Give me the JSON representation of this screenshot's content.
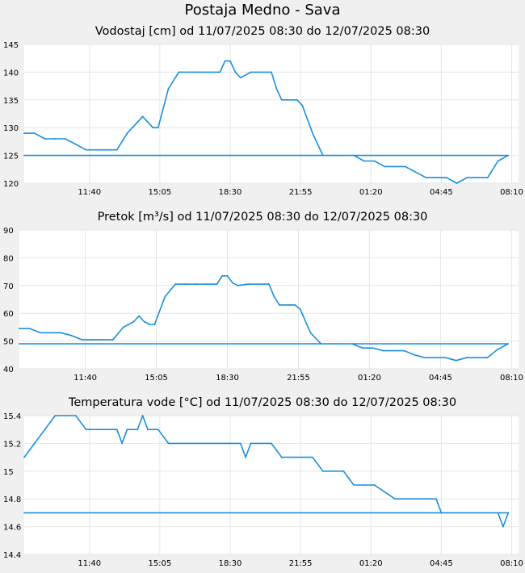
{
  "page_title": "Postaja Medno - Sava",
  "chart_data": [
    {
      "type": "line",
      "title": "Vodostaj [cm] od 11/07/2025 08:30 do 12/07/2025 08:30",
      "xlabel": "",
      "ylabel": "",
      "ylim": [
        120,
        145
      ],
      "yticks": [
        "120",
        "125",
        "130",
        "135",
        "140",
        "145"
      ],
      "xticks": [
        "11:40",
        "15:05",
        "18:30",
        "21:55",
        "01:20",
        "04:45",
        "08:10"
      ],
      "grid": true,
      "color": "#1a8fdc",
      "series": [
        {
          "x": [
            "08:30",
            "09:00",
            "09:30",
            "10:00",
            "10:30",
            "11:00",
            "11:30",
            "12:00",
            "12:30",
            "13:00",
            "13:30",
            "13:45",
            "14:00",
            "14:15",
            "14:30",
            "14:45",
            "15:00",
            "15:30",
            "16:00",
            "16:30",
            "17:00",
            "17:30",
            "18:00",
            "18:15",
            "18:30",
            "18:45",
            "19:00",
            "19:30",
            "20:00",
            "20:30",
            "20:45",
            "21:00",
            "21:30",
            "21:45",
            "22:00",
            "22:30",
            "23:00",
            "23:30",
            "00:00",
            "00:30",
            "01:00",
            "01:30",
            "02:00",
            "02:30",
            "03:00",
            "03:30",
            "04:00",
            "04:30",
            "04:45",
            "05:00",
            "05:30",
            "06:00",
            "06:15",
            "06:30",
            "07:00",
            "07:30",
            "08:00",
            "08:30"
          ],
          "y": [
            129,
            129,
            128,
            128,
            128,
            127,
            126,
            126,
            126,
            126,
            129,
            130,
            131,
            132,
            131,
            130,
            130,
            137,
            140,
            140,
            140,
            140,
            140,
            142,
            142,
            140,
            139,
            140,
            140,
            140,
            137,
            135,
            135,
            135,
            134,
            129,
            125,
            125,
            125,
            125,
            124,
            124,
            123,
            123,
            123,
            122,
            121,
            121,
            121,
            121,
            120,
            121,
            121,
            121,
            121,
            124,
            125,
            125
          ]
        }
      ]
    },
    {
      "type": "line",
      "title": "Pretok [m³/s] od 11/07/2025 08:30 do 12/07/2025 08:30",
      "xlabel": "",
      "ylabel": "",
      "ylim": [
        40,
        90
      ],
      "yticks": [
        "40",
        "50",
        "60",
        "70",
        "80",
        "90"
      ],
      "xticks": [
        "11:40",
        "15:05",
        "18:30",
        "21:55",
        "01:20",
        "04:45",
        "08:10"
      ],
      "grid": true,
      "color": "#1a8fdc",
      "series": [
        {
          "x": [
            "08:30",
            "09:00",
            "09:30",
            "10:00",
            "10:30",
            "11:00",
            "11:30",
            "12:00",
            "12:30",
            "13:00",
            "13:30",
            "13:45",
            "14:00",
            "14:15",
            "14:30",
            "14:45",
            "15:00",
            "15:30",
            "16:00",
            "16:30",
            "17:00",
            "17:30",
            "18:00",
            "18:15",
            "18:30",
            "18:45",
            "19:00",
            "19:30",
            "20:00",
            "20:30",
            "20:45",
            "21:00",
            "21:30",
            "21:45",
            "22:00",
            "22:30",
            "23:00",
            "23:30",
            "00:00",
            "00:30",
            "01:00",
            "01:30",
            "02:00",
            "02:30",
            "03:00",
            "03:30",
            "04:00",
            "04:30",
            "04:45",
            "05:00",
            "05:30",
            "06:00",
            "06:15",
            "06:30",
            "07:00",
            "07:30",
            "08:00",
            "08:30"
          ],
          "y": [
            54.5,
            54.5,
            53,
            53,
            53,
            52,
            50.5,
            50.5,
            50.5,
            50.5,
            55,
            56,
            57,
            59,
            57,
            56,
            56,
            66,
            70.5,
            70.5,
            70.5,
            70.5,
            70.5,
            73.5,
            73.5,
            71,
            70,
            70.5,
            70.5,
            70.5,
            66,
            63,
            63,
            63,
            61.5,
            53,
            49,
            49,
            49,
            49,
            47.5,
            47.5,
            46.5,
            46.5,
            46.5,
            45,
            44,
            44,
            44,
            44,
            43,
            44,
            44,
            44,
            44,
            47,
            49,
            49
          ]
        }
      ]
    },
    {
      "type": "line",
      "title": "Temperatura vode [°C] od 11/07/2025 08:30 do 12/07/2025 08:30",
      "xlabel": "",
      "ylabel": "",
      "ylim": [
        14.4,
        15.4
      ],
      "yticks": [
        "14.4",
        "14.6",
        "14.8",
        "15",
        "15.2",
        "15.4"
      ],
      "xticks": [
        "11:40",
        "15:05",
        "18:30",
        "21:55",
        "01:20",
        "04:45",
        "08:10"
      ],
      "grid": true,
      "color": "#1a8fdc",
      "series": [
        {
          "x": [
            "08:30",
            "09:00",
            "09:30",
            "10:00",
            "10:30",
            "11:00",
            "11:30",
            "12:00",
            "12:30",
            "13:00",
            "13:15",
            "13:30",
            "14:00",
            "14:15",
            "14:30",
            "15:00",
            "15:30",
            "16:00",
            "17:00",
            "18:00",
            "19:00",
            "19:15",
            "19:30",
            "20:00",
            "20:30",
            "21:00",
            "22:00",
            "22:30",
            "23:00",
            "00:00",
            "00:15",
            "00:30",
            "01:00",
            "01:30",
            "02:00",
            "02:30",
            "03:00",
            "04:00",
            "04:30",
            "04:45",
            "05:00",
            "06:00",
            "07:00",
            "07:30",
            "07:45",
            "08:00",
            "08:30"
          ],
          "y": [
            15.1,
            15.2,
            15.3,
            15.4,
            15.4,
            15.4,
            15.3,
            15.3,
            15.3,
            15.3,
            15.2,
            15.3,
            15.3,
            15.4,
            15.3,
            15.3,
            15.2,
            15.2,
            15.2,
            15.2,
            15.2,
            15.1,
            15.2,
            15.2,
            15.2,
            15.1,
            15.1,
            15.1,
            15.0,
            15.0,
            14.95,
            14.9,
            14.9,
            14.9,
            14.85,
            14.8,
            14.8,
            14.8,
            14.8,
            14.7,
            14.7,
            14.7,
            14.7,
            14.7,
            14.6,
            14.7,
            14.7
          ]
        }
      ]
    }
  ]
}
